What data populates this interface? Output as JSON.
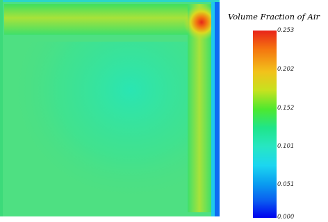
{
  "legend": {
    "title": "Volume Fraction of Air",
    "ticks": [
      "0.253",
      "0.202",
      "0.152",
      "0.101",
      "0.051",
      "0.000"
    ]
  },
  "colors": {
    "max": "#e8231a",
    "min": "#0000ee",
    "field_base": "#4ee082"
  }
}
